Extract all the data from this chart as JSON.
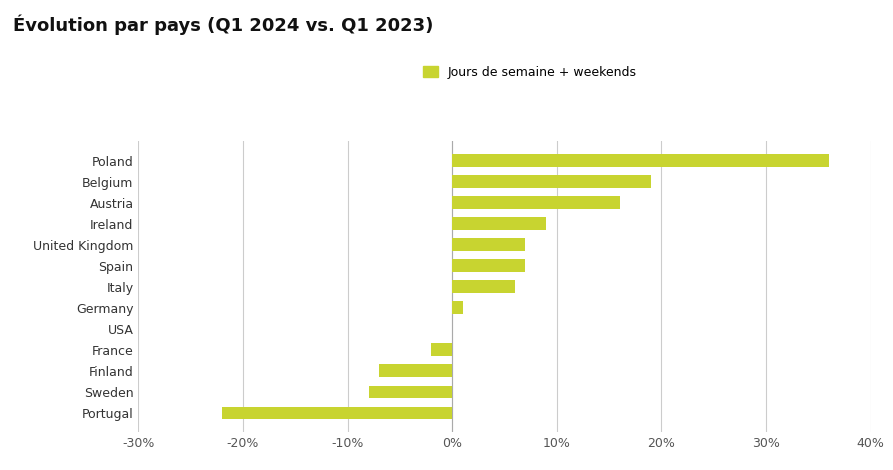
{
  "title": "Évolution par pays (Q1 2024 vs. Q1 2023)",
  "categories": [
    "Poland",
    "Belgium",
    "Austria",
    "Ireland",
    "United Kingdom",
    "Spain",
    "Italy",
    "Germany",
    "USA",
    "France",
    "Finland",
    "Sweden",
    "Portugal"
  ],
  "values": [
    36,
    19,
    16,
    9,
    7,
    7,
    6,
    1,
    0,
    -2,
    -7,
    -8,
    -22
  ],
  "bar_color": "#c8d430",
  "legend_label": "Jours de semaine + weekends",
  "xlim": [
    -30,
    40
  ],
  "xticks": [
    -30,
    -20,
    -10,
    0,
    10,
    20,
    30,
    40
  ],
  "xtick_labels": [
    "-30%",
    "-20%",
    "-10%",
    "0%",
    "10%",
    "20%",
    "30%",
    "40%"
  ],
  "background_color": "#ffffff",
  "title_fontsize": 13,
  "tick_fontsize": 9,
  "label_fontsize": 9
}
